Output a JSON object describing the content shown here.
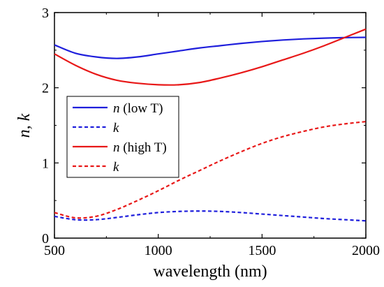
{
  "chart_data": {
    "type": "line",
    "xlabel": "wavelength (nm)",
    "ylabel": "n, k",
    "xlim": [
      500,
      2000
    ],
    "ylim": [
      0,
      3
    ],
    "xticks": [
      500,
      1000,
      1500,
      2000
    ],
    "yticks": [
      0,
      1,
      2,
      3
    ],
    "grid": false,
    "legend_position": "left",
    "x": [
      500,
      600,
      700,
      800,
      900,
      1000,
      1100,
      1200,
      1300,
      1400,
      1500,
      1600,
      1700,
      1800,
      1900,
      2000
    ],
    "series": [
      {
        "name": "n (low T)",
        "legend_italic": "n",
        "legend_rest": " (low T)",
        "color": "#1f1fdc",
        "dash": "solid",
        "values": [
          2.57,
          2.46,
          2.41,
          2.39,
          2.41,
          2.45,
          2.49,
          2.53,
          2.56,
          2.59,
          2.615,
          2.635,
          2.65,
          2.66,
          2.667,
          2.67
        ]
      },
      {
        "name": "k",
        "legend_italic": "k",
        "legend_rest": "",
        "color": "#1f1fdc",
        "dash": "dashed",
        "values": [
          0.29,
          0.245,
          0.245,
          0.275,
          0.31,
          0.34,
          0.355,
          0.36,
          0.355,
          0.34,
          0.32,
          0.3,
          0.28,
          0.26,
          0.245,
          0.23
        ]
      },
      {
        "name": "n (high T)",
        "legend_italic": "n",
        "legend_rest": " (high T)",
        "color": "#e81818",
        "dash": "solid",
        "values": [
          2.45,
          2.3,
          2.18,
          2.1,
          2.06,
          2.04,
          2.04,
          2.07,
          2.13,
          2.2,
          2.28,
          2.37,
          2.46,
          2.56,
          2.67,
          2.78
        ]
      },
      {
        "name": "k",
        "legend_italic": "k",
        "legend_rest": "",
        "color": "#e81818",
        "dash": "dashed",
        "values": [
          0.34,
          0.27,
          0.29,
          0.38,
          0.5,
          0.63,
          0.77,
          0.9,
          1.03,
          1.15,
          1.26,
          1.35,
          1.42,
          1.48,
          1.52,
          1.55
        ]
      }
    ]
  }
}
